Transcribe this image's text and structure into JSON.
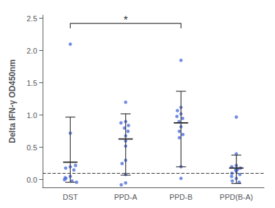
{
  "chart_data": {
    "type": "scatter",
    "ylabel": "Delta IFN-γ OD450nm",
    "categories": [
      "DST",
      "PPD-A",
      "PPD-B",
      "PPD(B-A)"
    ],
    "values": [
      [
        2.1,
        0.72,
        0.2,
        0.18,
        0.15,
        0.22,
        0.05,
        0.02,
        -0.02,
        -0.04,
        0.0,
        0.03
      ],
      [
        1.2,
        0.9,
        0.88,
        0.84,
        0.8,
        0.75,
        0.68,
        0.6,
        0.52,
        0.3,
        0.25,
        0.08,
        -0.05,
        -0.08
      ],
      [
        1.85,
        1.12,
        1.07,
        1.02,
        0.98,
        0.95,
        0.9,
        0.82,
        0.75,
        0.7,
        0.65,
        0.2,
        0.02
      ],
      [
        0.97,
        0.4,
        0.22,
        0.2,
        0.18,
        0.17,
        0.16,
        0.15,
        0.13,
        0.1,
        0.08,
        0.05,
        0.02,
        -0.02,
        -0.04
      ]
    ],
    "means": [
      0.27,
      0.63,
      0.88,
      0.18
    ],
    "sd_upper": [
      0.97,
      1.02,
      1.37,
      0.38
    ],
    "sd_lower": [
      -0.04,
      0.07,
      0.2,
      -0.06
    ],
    "marker": "circle",
    "reference_lines": [
      {
        "y": 0.1,
        "line_style": "dashed"
      }
    ],
    "annotations": [
      {
        "text": "*",
        "x1": "DST",
        "x2": "PPD-B",
        "y": 2.42
      }
    ],
    "ylim": [
      -0.12,
      2.55
    ],
    "yticks": [
      {
        "value": 0,
        "label": "0.0"
      },
      0.5,
      {
        "value": 1.0,
        "label": "1.0"
      },
      1.5,
      {
        "value": 2.0,
        "label": "2.0"
      },
      2.5
    ],
    "grid": false
  }
}
